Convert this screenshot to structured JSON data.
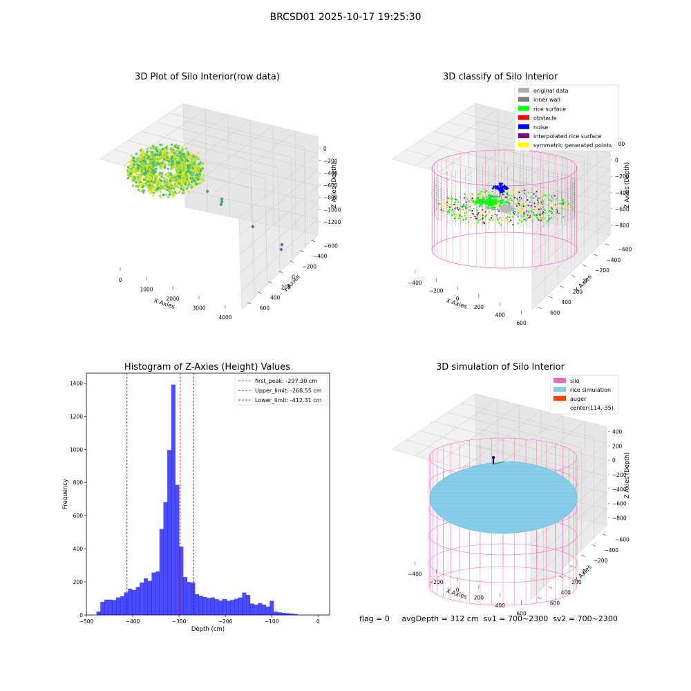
{
  "suptitle": "BRCSD01 2025-10-17 19:25:30",
  "footer": "flag = 0     avgDepth = 312 cm  sv1 = 700~2300  sv2 = 700~2300",
  "plot1": {
    "title": "3D Plot of Silo Interior(row data)",
    "xlabel": "X Axies",
    "ylabel": "Y Axies",
    "zlabel": "Z Axies (Depth)",
    "xticks": [
      "0",
      "1000",
      "2000",
      "3000",
      "4000"
    ],
    "yticks": [
      "600",
      "400",
      "200",
      "0",
      "−200",
      "−400",
      "−600"
    ],
    "zticks": [
      "0",
      "−200",
      "−400",
      "−600",
      "−800",
      "−1000",
      "−1200"
    ]
  },
  "plot2": {
    "title": "3D classify of Silo Interior",
    "xlabel": "X Axies",
    "ylabel": "Y Axies",
    "zlabel": "Z Axies (Depth)",
    "xticks": [
      "−400",
      "−200",
      "0",
      "200",
      "400",
      "600"
    ],
    "yticks": [
      "600",
      "400",
      "200",
      "0",
      "−200",
      "−400",
      "−600"
    ],
    "zticks": [
      "200",
      "0",
      "−200",
      "−400",
      "−600",
      "−800"
    ],
    "legend": [
      {
        "label": "original data",
        "color": "#b0b0b0"
      },
      {
        "label": "inner wall",
        "color": "#808080"
      },
      {
        "label": "rice surface",
        "color": "#00ff00"
      },
      {
        "label": "obstacle",
        "color": "#ff0000"
      },
      {
        "label": "noise",
        "color": "#0000ff"
      },
      {
        "label": "interpolated rice surface",
        "color": "#800080"
      },
      {
        "label": "symmetric generated points",
        "color": "#ffff00"
      }
    ]
  },
  "plot4": {
    "title": "3D simulation of Silo Interior",
    "xlabel": "X Axies",
    "ylabel": "Y Axies",
    "zlabel": "Z Axies (Depth)",
    "xticks": [
      "−400",
      "−200",
      "0",
      "200",
      "400",
      "600"
    ],
    "yticks": [
      "600",
      "400",
      "200",
      "0",
      "−200",
      "−400",
      "−600"
    ],
    "zticks": [
      "400",
      "200",
      "0",
      "−200",
      "−400",
      "−600",
      "−800"
    ],
    "legend": [
      {
        "label": "silo",
        "color": "#ff69b4"
      },
      {
        "label": "rice simulation",
        "color": "#87ceeb"
      },
      {
        "label": "auger",
        "color": "#ff4500"
      },
      {
        "label": "center(114,-35)",
        "color": ""
      }
    ]
  },
  "chart_data": [
    {
      "type": "scatter",
      "title": "3D Plot of Silo Interior(row data)",
      "xlabel": "X Axies",
      "ylabel": "Y Axies",
      "zlabel": "Z Axies (Depth)",
      "xlim": [
        -500,
        4500
      ],
      "ylim": [
        -700,
        700
      ],
      "zlim": [
        -1300,
        100
      ],
      "colormap": "viridis",
      "note_points": "dense ring of rice points near x 0-500, z -200 to -600 with a few outlier points toward x 4000"
    },
    {
      "type": "scatter",
      "title": "3D classify of Silo Interior",
      "xlabel": "X Axies",
      "ylabel": "Y Axies",
      "zlabel": "Z Axies (Depth)",
      "xlim": [
        -500,
        700
      ],
      "ylim": [
        -650,
        650
      ],
      "zlim": [
        -900,
        250
      ],
      "series": [
        {
          "name": "original data"
        },
        {
          "name": "inner wall"
        },
        {
          "name": "rice surface"
        },
        {
          "name": "obstacle"
        },
        {
          "name": "noise"
        },
        {
          "name": "interpolated rice surface"
        },
        {
          "name": "symmetric generated points"
        }
      ]
    },
    {
      "type": "bar",
      "title": "Histogram of Z-Axies (Height) Values",
      "xlabel": "Depth (cm)",
      "ylabel": "Frequency",
      "xlim": [
        -500,
        25
      ],
      "ylim": [
        0,
        1460
      ],
      "xticks": [
        -500,
        -400,
        -300,
        -200,
        -100,
        0
      ],
      "yticks": [
        0,
        200,
        400,
        600,
        800,
        1000,
        1200,
        1400
      ],
      "bin_width": 8.5,
      "bin_start": -478,
      "values": [
        20,
        78,
        92,
        92,
        90,
        105,
        112,
        135,
        158,
        150,
        168,
        195,
        220,
        205,
        255,
        262,
        518,
        680,
        995,
        1390,
        785,
        412,
        228,
        198,
        195,
        125,
        115,
        108,
        102,
        105,
        95,
        86,
        96,
        85,
        90,
        97,
        105,
        135,
        120,
        68,
        62,
        70,
        62,
        50,
        85,
        20,
        15,
        12,
        10,
        8,
        5
      ],
      "bar_color": "#0000ff",
      "vlines": [
        {
          "name": "first_peak",
          "label": "first_peak: -297.30 cm",
          "x": -297.3,
          "color": "#ff0000",
          "style": "dashed"
        },
        {
          "name": "upper_limit",
          "label": "Upper_limit: -268.55 cm",
          "x": -268.55,
          "color": "#0000ff",
          "style": "dashed"
        },
        {
          "name": "lower_limit",
          "label": "Lower_limit: -412.31 cm",
          "x": -412.31,
          "color": "#0000ff",
          "style": "dashed"
        }
      ],
      "legend_position": "top-right"
    },
    {
      "type": "surface",
      "title": "3D simulation of Silo Interior",
      "xlabel": "X Axies",
      "ylabel": "Y Axies",
      "zlabel": "Z Axies (Depth)",
      "xlim": [
        -500,
        700
      ],
      "ylim": [
        -650,
        650
      ],
      "zlim": [
        -900,
        450
      ],
      "series": [
        {
          "name": "silo"
        },
        {
          "name": "rice simulation"
        },
        {
          "name": "auger"
        },
        {
          "name": "center(114,-35)"
        }
      ]
    }
  ]
}
